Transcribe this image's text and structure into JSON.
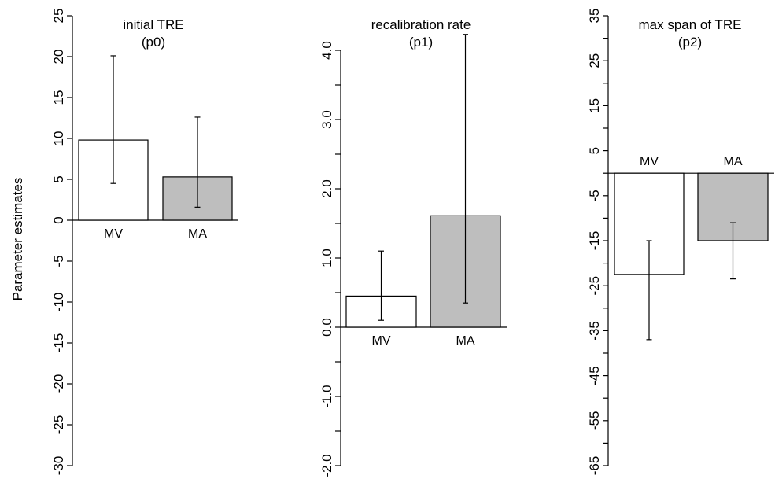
{
  "ylabel": "Parameter estimates",
  "colors": {
    "bar_mv": "#ffffff",
    "bar_ma": "#bebebe",
    "stroke": "#000000"
  },
  "chart_data": [
    {
      "type": "bar",
      "title": [
        "initial TRE",
        "(p0)"
      ],
      "categories": [
        "MV",
        "MA"
      ],
      "values": [
        9.8,
        5.3
      ],
      "error_low": [
        4.5,
        1.6
      ],
      "error_high": [
        20.1,
        12.6
      ],
      "ylim": [
        -30,
        25
      ],
      "yticks": [
        -30,
        -25,
        -20,
        -15,
        -10,
        -5,
        0,
        5,
        10,
        15,
        20,
        25
      ],
      "ytick_labels": [
        "-30",
        "-25",
        "-20",
        "-15",
        "-10",
        "-5",
        "0",
        "5",
        "10",
        "15",
        "20",
        "25"
      ],
      "category_labels_position": "below"
    },
    {
      "type": "bar",
      "title": [
        "recalibration rate",
        "(p1)"
      ],
      "categories": [
        "MV",
        "MA"
      ],
      "values": [
        0.45,
        1.61
      ],
      "error_low": [
        0.1,
        0.35
      ],
      "error_high": [
        1.1,
        4.23
      ],
      "ylim": [
        -2.0,
        4.5
      ],
      "yticks": [
        -2.0,
        -1.5,
        -1.0,
        -0.5,
        0.0,
        0.5,
        1.0,
        1.5,
        2.0,
        2.5,
        3.0,
        3.5,
        4.0
      ],
      "ytick_labels": [
        "-2.0",
        "",
        "-1.0",
        "",
        "0.0",
        "",
        "1.0",
        "",
        "2.0",
        "",
        "3.0",
        "",
        "4.0"
      ],
      "category_labels_position": "below"
    },
    {
      "type": "bar",
      "title": [
        "max span of TRE",
        "(p2)"
      ],
      "categories": [
        "MV",
        "MA"
      ],
      "values": [
        -22.5,
        -15
      ],
      "error_low": [
        -37,
        -23.5
      ],
      "error_high": [
        -15,
        -11
      ],
      "ylim": [
        -65,
        35
      ],
      "yticks": [
        -65,
        -60,
        -55,
        -50,
        -45,
        -40,
        -35,
        -30,
        -25,
        -20,
        -15,
        -10,
        -5,
        0,
        5,
        10,
        15,
        20,
        25,
        30,
        35
      ],
      "ytick_labels": [
        "-65",
        "",
        "-55",
        "",
        "-45",
        "",
        "-35",
        "",
        "-25",
        "",
        "-15",
        "",
        "-5",
        "",
        "5",
        "",
        "15",
        "",
        "25",
        "",
        "35"
      ],
      "category_labels_position": "above"
    }
  ]
}
